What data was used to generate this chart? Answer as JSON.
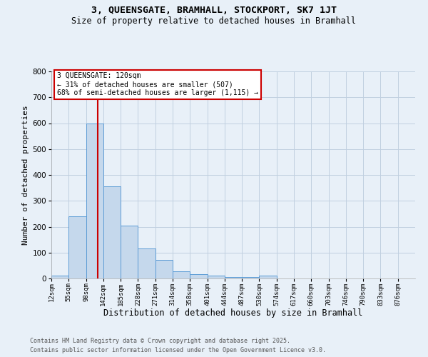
{
  "title1": "3, QUEENSGATE, BRAMHALL, STOCKPORT, SK7 1JT",
  "title2": "Size of property relative to detached houses in Bramhall",
  "xlabel": "Distribution of detached houses by size in Bramhall",
  "ylabel": "Number of detached properties",
  "footnote1": "Contains HM Land Registry data © Crown copyright and database right 2025.",
  "footnote2": "Contains public sector information licensed under the Open Government Licence v3.0.",
  "bin_labels": [
    "12sqm",
    "55sqm",
    "98sqm",
    "142sqm",
    "185sqm",
    "228sqm",
    "271sqm",
    "314sqm",
    "358sqm",
    "401sqm",
    "444sqm",
    "487sqm",
    "530sqm",
    "574sqm",
    "617sqm",
    "660sqm",
    "703sqm",
    "746sqm",
    "790sqm",
    "833sqm",
    "876sqm"
  ],
  "bar_values": [
    10,
    240,
    600,
    355,
    205,
    115,
    72,
    27,
    17,
    12,
    5,
    5,
    10,
    0,
    0,
    0,
    0,
    0,
    0,
    0
  ],
  "bar_color": "#c5d8ec",
  "bar_edge_color": "#5b9bd5",
  "grid_color": "#c0cfe0",
  "background_color": "#e8f0f8",
  "red_line_x": 2.67,
  "annotation_text": "3 QUEENSGATE: 120sqm\n← 31% of detached houses are smaller (507)\n68% of semi-detached houses are larger (1,115) →",
  "annotation_box_color": "#ffffff",
  "annotation_border_color": "#cc0000",
  "ylim": [
    0,
    800
  ],
  "yticks": [
    0,
    100,
    200,
    300,
    400,
    500,
    600,
    700,
    800
  ]
}
